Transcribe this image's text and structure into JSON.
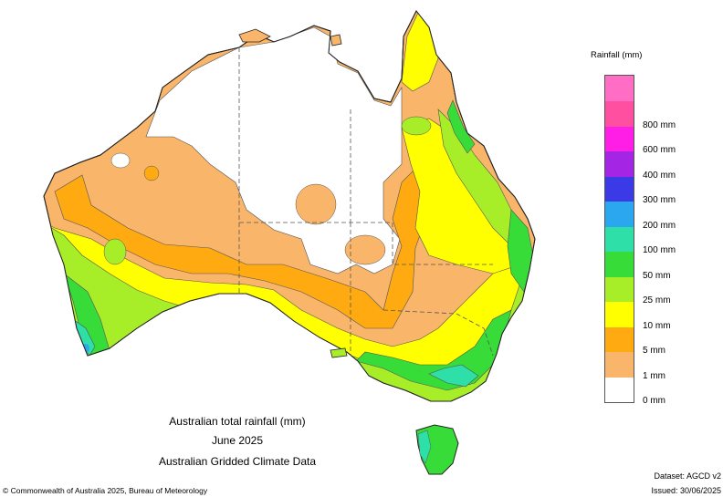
{
  "legend": {
    "title": "Rainfall (mm)",
    "bins": [
      {
        "label": "800 mm",
        "color": "#ff4fa0"
      },
      {
        "label": "600 mm",
        "color": "#ff1ee6"
      },
      {
        "label": "400 mm",
        "color": "#a426e4"
      },
      {
        "label": "300 mm",
        "color": "#3a3ae6"
      },
      {
        "label": "200 mm",
        "color": "#2aa7ee"
      },
      {
        "label": "100 mm",
        "color": "#2ee0a8"
      },
      {
        "label": "50 mm",
        "color": "#38dc38"
      },
      {
        "label": "25 mm",
        "color": "#a8ee28"
      },
      {
        "label": "10 mm",
        "color": "#ffff00"
      },
      {
        "label": "5 mm",
        "color": "#ffaa10"
      },
      {
        "label": "1 mm",
        "color": "#f9b56a"
      },
      {
        "label": "0 mm",
        "color": "#ffffff"
      }
    ],
    "top_color": "#ff6ec4"
  },
  "captions": {
    "line1": "Australian total rainfall (mm)",
    "line2": "June 2025",
    "line3": "Australian Gridded Climate Data"
  },
  "footer": {
    "copyright": "© Commonwealth of Australia 2025, Bureau of Meteorology",
    "dataset": "Dataset: AGCD v2",
    "issued": "Issued: 30/06/2025"
  }
}
